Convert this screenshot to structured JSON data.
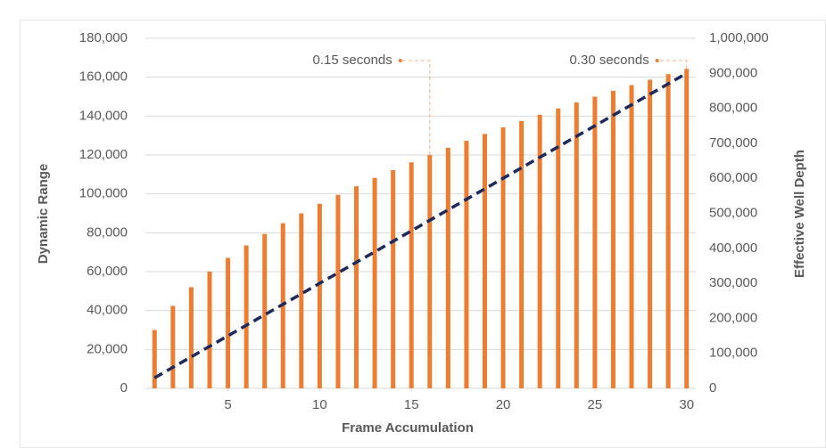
{
  "chart_data": {
    "type": "combo",
    "x_label": "Frame Accumulation",
    "y_label": "Dynamic Range",
    "y2_label": "Effective Well Depth",
    "x": [
      1,
      2,
      3,
      4,
      5,
      6,
      7,
      8,
      9,
      10,
      11,
      12,
      13,
      14,
      15,
      16,
      17,
      18,
      19,
      20,
      21,
      22,
      23,
      24,
      25,
      26,
      27,
      28,
      29,
      30
    ],
    "values": [
      30000,
      42400,
      52000,
      60000,
      67100,
      73500,
      79400,
      84900,
      90000,
      94900,
      99500,
      103900,
      108200,
      112200,
      116200,
      120000,
      123700,
      127300,
      130800,
      134200,
      137500,
      140700,
      143900,
      147000,
      150000,
      153000,
      155900,
      158700,
      161600,
      164300
    ],
    "color": "#ed7d31",
    "line": {
      "x": [
        1,
        30
      ],
      "values": [
        30000,
        900000
      ],
      "axis": "y2",
      "color": "#1f2a5c",
      "dashed": true
    },
    "xlim": [
      0.5,
      30.5
    ],
    "xticks": [
      5,
      10,
      15,
      20,
      25,
      30
    ],
    "ylim": [
      0,
      180000
    ],
    "yticks": [
      0,
      {
        "value": 20000,
        "label": "20,000"
      },
      {
        "value": 40000,
        "label": "40,000"
      },
      {
        "value": 60000,
        "label": "60,000"
      },
      {
        "value": 80000,
        "label": "80,000"
      },
      {
        "value": 100000,
        "label": "100,000"
      },
      {
        "value": 120000,
        "label": "120,000"
      },
      {
        "value": 140000,
        "label": "140,000"
      },
      {
        "value": 160000,
        "label": "160,000"
      },
      {
        "value": 180000,
        "label": "180,000"
      }
    ],
    "y2lim": [
      0,
      1000000
    ],
    "y2ticks": [
      0,
      {
        "value": 100000,
        "label": "100,000"
      },
      {
        "value": 200000,
        "label": "200,000"
      },
      {
        "value": 300000,
        "label": "300,000"
      },
      {
        "value": 400000,
        "label": "400,000"
      },
      {
        "value": 500000,
        "label": "500,000"
      },
      {
        "value": 600000,
        "label": "600,000"
      },
      {
        "value": 700000,
        "label": "700,000"
      },
      {
        "value": 800000,
        "label": "800,000"
      },
      {
        "value": 900000,
        "label": "900,000"
      },
      {
        "value": 1000000,
        "label": "1,000,000"
      }
    ],
    "grid": true,
    "annotations": [
      {
        "text": "0.15 seconds",
        "x": 16
      },
      {
        "text": "0.30 seconds",
        "x": 30
      }
    ]
  }
}
